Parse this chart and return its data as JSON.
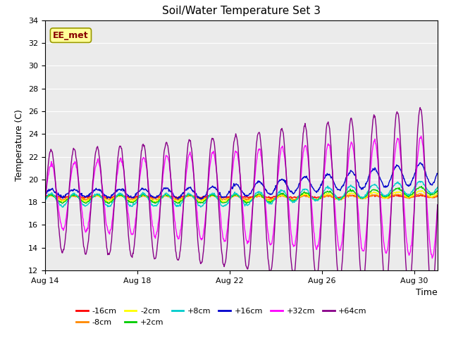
{
  "title": "Soil/Water Temperature Set 3",
  "xlabel": "Time",
  "ylabel": "Temperature (C)",
  "ylim": [
    12,
    34
  ],
  "yticks": [
    12,
    14,
    16,
    18,
    20,
    22,
    24,
    26,
    28,
    30,
    32,
    34
  ],
  "xtick_labels": [
    "Aug 14",
    "Aug 18",
    "Aug 22",
    "Aug 26",
    "Aug 30"
  ],
  "series": [
    {
      "label": "-16cm",
      "color": "#ff0000"
    },
    {
      "label": "-8cm",
      "color": "#ff8800"
    },
    {
      "label": "-2cm",
      "color": "#ffff00"
    },
    {
      "label": "+2cm",
      "color": "#00cc00"
    },
    {
      "label": "+8cm",
      "color": "#00cccc"
    },
    {
      "label": "+16cm",
      "color": "#0000cc"
    },
    {
      "label": "+32cm",
      "color": "#ff00ff"
    },
    {
      "label": "+64cm",
      "color": "#880088"
    }
  ],
  "annotation_label": "EE_met",
  "bg_color": "#ffffff",
  "plot_bg_color": "#ebebeb",
  "grid_color": "#ffffff",
  "linewidth": 1.0
}
